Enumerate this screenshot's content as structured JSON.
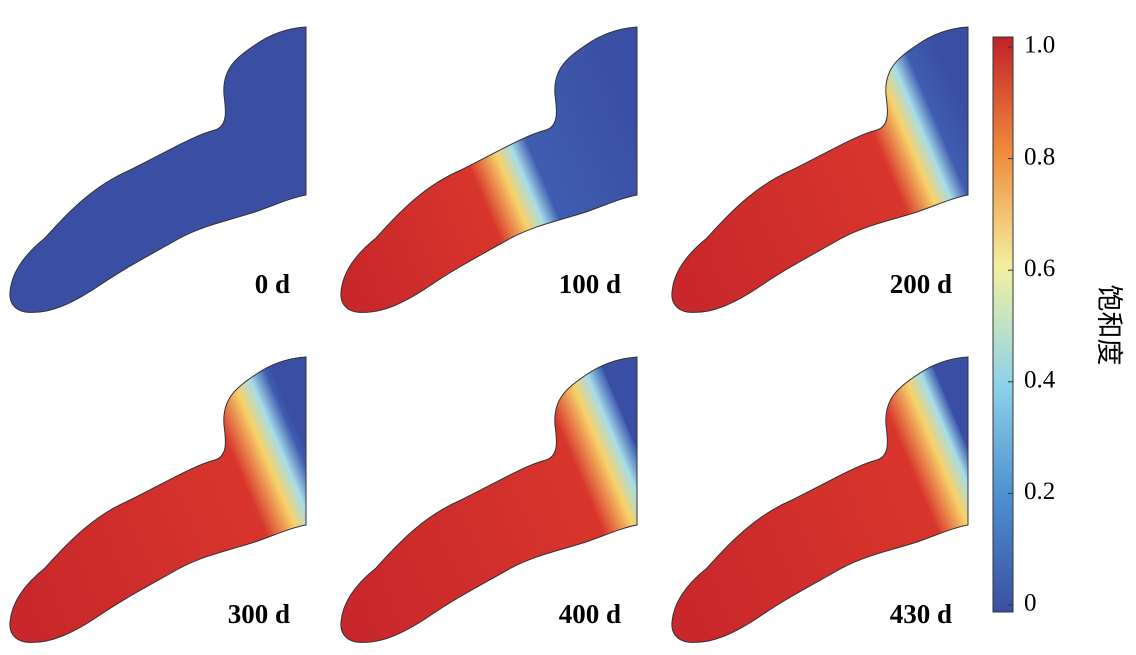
{
  "chart_data": {
    "type": "field",
    "panels": [
      "0 d",
      "100 d",
      "200 d",
      "300 d",
      "400 d",
      "430 d"
    ],
    "colorbar": {
      "label": "饱和度",
      "lim": [
        0,
        1
      ],
      "ticks": [
        0,
        0.2,
        0.4,
        0.6,
        0.8,
        {
          "value": 1,
          "label": "1.0"
        }
      ]
    }
  }
}
